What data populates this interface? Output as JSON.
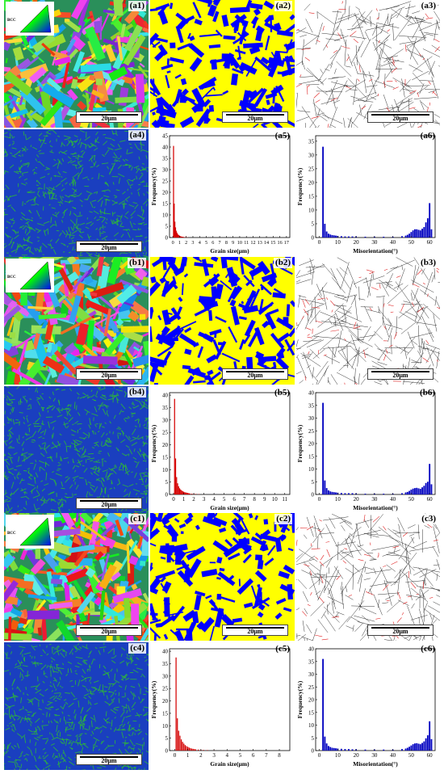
{
  "rows": [
    {
      "panels": [
        {
          "label": "(a1)",
          "kind": "ipf",
          "scale": "20μm",
          "seed": 11
        },
        {
          "label": "(a2)",
          "kind": "phase",
          "scale": "20μm",
          "seed": 12
        },
        {
          "label": "(a3)",
          "kind": "boundary",
          "scale": "20μm",
          "seed": 13
        },
        {
          "label": "(a4)",
          "kind": "kam",
          "scale": "20μm",
          "seed": 14
        },
        {
          "label": "(a5)",
          "kind": "grain"
        },
        {
          "label": "(a6)",
          "kind": "mis"
        }
      ]
    },
    {
      "panels": [
        {
          "label": "(b1)",
          "kind": "ipf",
          "scale": "20μm",
          "seed": 21
        },
        {
          "label": "(b2)",
          "kind": "phase",
          "scale": "20μm",
          "seed": 22
        },
        {
          "label": "(b3)",
          "kind": "boundary",
          "scale": "20μm",
          "seed": 23
        },
        {
          "label": "(b4)",
          "kind": "kam",
          "scale": "20μm",
          "seed": 24
        },
        {
          "label": "(b5)",
          "kind": "grain"
        },
        {
          "label": "(b6)",
          "kind": "mis"
        }
      ]
    },
    {
      "panels": [
        {
          "label": "(c1)",
          "kind": "ipf",
          "scale": "20μm",
          "seed": 31
        },
        {
          "label": "(c2)",
          "kind": "phase",
          "scale": "20μm",
          "seed": 32
        },
        {
          "label": "(c3)",
          "kind": "boundary",
          "scale": "20μm",
          "seed": 33
        },
        {
          "label": "(c4)",
          "kind": "kam",
          "scale": "20μm",
          "seed": 34
        },
        {
          "label": "(c5)",
          "kind": "grain"
        },
        {
          "label": "(c6)",
          "kind": "mis"
        }
      ]
    }
  ],
  "ipf_key_label": "BCC",
  "colors": {
    "phase_yellow": "#ffff00",
    "phase_blue": "#0000ff",
    "kam_blue": "#1a3fbf",
    "kam_green": "#2fbf2f",
    "grain_bar": "#d40000",
    "mis_bar": "#0000c0"
  },
  "chart_data": [
    {
      "id": "a5",
      "type": "bar",
      "xlabel": "Grain size(μm)",
      "ylabel": "Frequency(%)",
      "ylim": [
        0,
        45
      ],
      "yticks": [
        0,
        5,
        10,
        15,
        20,
        25,
        30,
        35,
        40,
        45
      ],
      "xlim": [
        -0.5,
        17.5
      ],
      "xticks": [
        0,
        1,
        2,
        3,
        4,
        5,
        6,
        7,
        8,
        9,
        10,
        11,
        12,
        13,
        14,
        15,
        16,
        17
      ],
      "x": [
        0.1,
        0.2,
        0.3,
        0.4,
        0.5,
        0.6,
        0.7,
        0.8,
        0.9,
        1.0,
        1.1,
        1.2,
        1.3,
        1.4,
        1.5,
        1.6,
        1.8,
        2.0,
        2.2
      ],
      "values": [
        40.5,
        15,
        7,
        4.5,
        3,
        2.2,
        1.6,
        1.2,
        1,
        0.8,
        0.6,
        0.5,
        0.4,
        0.35,
        0.3,
        0.25,
        0.2,
        0.15,
        0.1
      ]
    },
    {
      "id": "a6",
      "type": "bar",
      "xlabel": "Misorientation(°)",
      "ylabel": "Frequency(%)",
      "ylim": [
        0,
        37
      ],
      "yticks": [
        0,
        5,
        10,
        15,
        20,
        25,
        30,
        35
      ],
      "xlim": [
        -2,
        63
      ],
      "xticks": [
        0,
        10,
        20,
        30,
        40,
        50,
        60
      ],
      "x": [
        2,
        3,
        4,
        5,
        6,
        7,
        8,
        9,
        10,
        12,
        14,
        16,
        18,
        20,
        25,
        30,
        35,
        40,
        45,
        47,
        48,
        49,
        50,
        51,
        52,
        53,
        54,
        55,
        56,
        57,
        58,
        59,
        60,
        61
      ],
      "values": [
        33,
        5,
        2.2,
        1.4,
        1.1,
        0.9,
        0.8,
        0.7,
        0.6,
        0.5,
        0.4,
        0.4,
        0.4,
        0.4,
        0.3,
        0.3,
        0.3,
        0.3,
        0.5,
        0.7,
        1.0,
        1.4,
        2.0,
        2.6,
        3.0,
        3.0,
        2.8,
        2.6,
        3.2,
        3.8,
        5.5,
        7.0,
        12.5,
        3.0
      ]
    },
    {
      "id": "b5",
      "type": "bar",
      "xlabel": "Grain size(μm)",
      "ylabel": "Frequency(%)",
      "ylim": [
        0,
        41
      ],
      "yticks": [
        0,
        5,
        10,
        15,
        20,
        25,
        30,
        35,
        40
      ],
      "xlim": [
        -0.4,
        11.5
      ],
      "xticks": [
        0,
        1,
        2,
        3,
        4,
        5,
        6,
        7,
        8,
        9,
        10,
        11
      ],
      "x": [
        0.1,
        0.2,
        0.3,
        0.4,
        0.5,
        0.6,
        0.7,
        0.8,
        0.9,
        1.0,
        1.1,
        1.2,
        1.3,
        1.4,
        1.5,
        1.6,
        1.8,
        2.0,
        2.2,
        2.5
      ],
      "values": [
        38.5,
        14.5,
        7,
        4.5,
        3.3,
        2.5,
        2,
        1.6,
        1.3,
        1.1,
        0.9,
        0.8,
        0.7,
        0.6,
        0.5,
        0.4,
        0.3,
        0.25,
        0.2,
        0.15
      ]
    },
    {
      "id": "b6",
      "type": "bar",
      "xlabel": "Misorientation(°)",
      "ylabel": "Frequency(%)",
      "ylim": [
        0,
        40
      ],
      "yticks": [
        0,
        5,
        10,
        15,
        20,
        25,
        30,
        35,
        40
      ],
      "xlim": [
        -2,
        63
      ],
      "xticks": [
        0,
        10,
        20,
        30,
        40,
        50,
        60
      ],
      "x": [
        2,
        3,
        4,
        5,
        6,
        7,
        8,
        9,
        10,
        12,
        14,
        16,
        18,
        20,
        25,
        30,
        35,
        40,
        45,
        47,
        48,
        49,
        50,
        51,
        52,
        53,
        54,
        55,
        56,
        57,
        58,
        59,
        60,
        61
      ],
      "values": [
        36,
        5.5,
        2.5,
        1.6,
        1.2,
        1.0,
        0.9,
        0.8,
        0.7,
        0.6,
        0.5,
        0.5,
        0.5,
        0.4,
        0.3,
        0.3,
        0.3,
        0.3,
        0.5,
        0.8,
        1.0,
        1.4,
        1.9,
        2.3,
        2.5,
        2.6,
        2.4,
        2.2,
        2.8,
        3.4,
        4.5,
        5.0,
        12,
        4.0
      ]
    },
    {
      "id": "c5",
      "type": "bar",
      "xlabel": "Grain size(μm)",
      "ylabel": "Frequency(%)",
      "ylim": [
        0,
        41
      ],
      "yticks": [
        0,
        5,
        10,
        15,
        20,
        25,
        30,
        35,
        40
      ],
      "xlim": [
        -0.4,
        8.8
      ],
      "xticks": [
        0,
        1,
        2,
        3,
        4,
        5,
        6,
        7,
        8
      ],
      "x": [
        0.1,
        0.2,
        0.3,
        0.4,
        0.5,
        0.6,
        0.7,
        0.8,
        0.9,
        1.0,
        1.1,
        1.2,
        1.3,
        1.4,
        1.5,
        1.6,
        1.8,
        2.0,
        2.2,
        2.5,
        3.0
      ],
      "values": [
        37.5,
        13,
        8,
        6,
        4.5,
        3.5,
        2.8,
        2.2,
        1.8,
        1.5,
        1.2,
        1.0,
        0.8,
        0.7,
        0.6,
        0.5,
        0.4,
        0.3,
        0.25,
        0.2,
        0.1
      ]
    },
    {
      "id": "c6",
      "type": "bar",
      "xlabel": "Misorientation(°)",
      "ylabel": "Frequency(%)",
      "ylim": [
        0,
        40
      ],
      "yticks": [
        0,
        5,
        10,
        15,
        20,
        25,
        30,
        35,
        40
      ],
      "xlim": [
        -2,
        63
      ],
      "xticks": [
        0,
        10,
        20,
        30,
        40,
        50,
        60
      ],
      "x": [
        2,
        3,
        4,
        5,
        6,
        7,
        8,
        9,
        10,
        12,
        14,
        16,
        18,
        20,
        25,
        30,
        35,
        40,
        45,
        47,
        48,
        49,
        50,
        51,
        52,
        53,
        54,
        55,
        56,
        57,
        58,
        59,
        60,
        61
      ],
      "values": [
        36,
        5.5,
        2.8,
        1.8,
        1.4,
        1.1,
        1.0,
        0.9,
        0.8,
        0.7,
        0.6,
        0.6,
        0.5,
        0.5,
        0.4,
        0.4,
        0.4,
        0.4,
        0.6,
        0.8,
        1.1,
        1.5,
        2.0,
        2.5,
        2.8,
        2.9,
        2.7,
        2.5,
        3.0,
        3.6,
        4.8,
        6.0,
        11.5,
        4.5
      ]
    }
  ]
}
